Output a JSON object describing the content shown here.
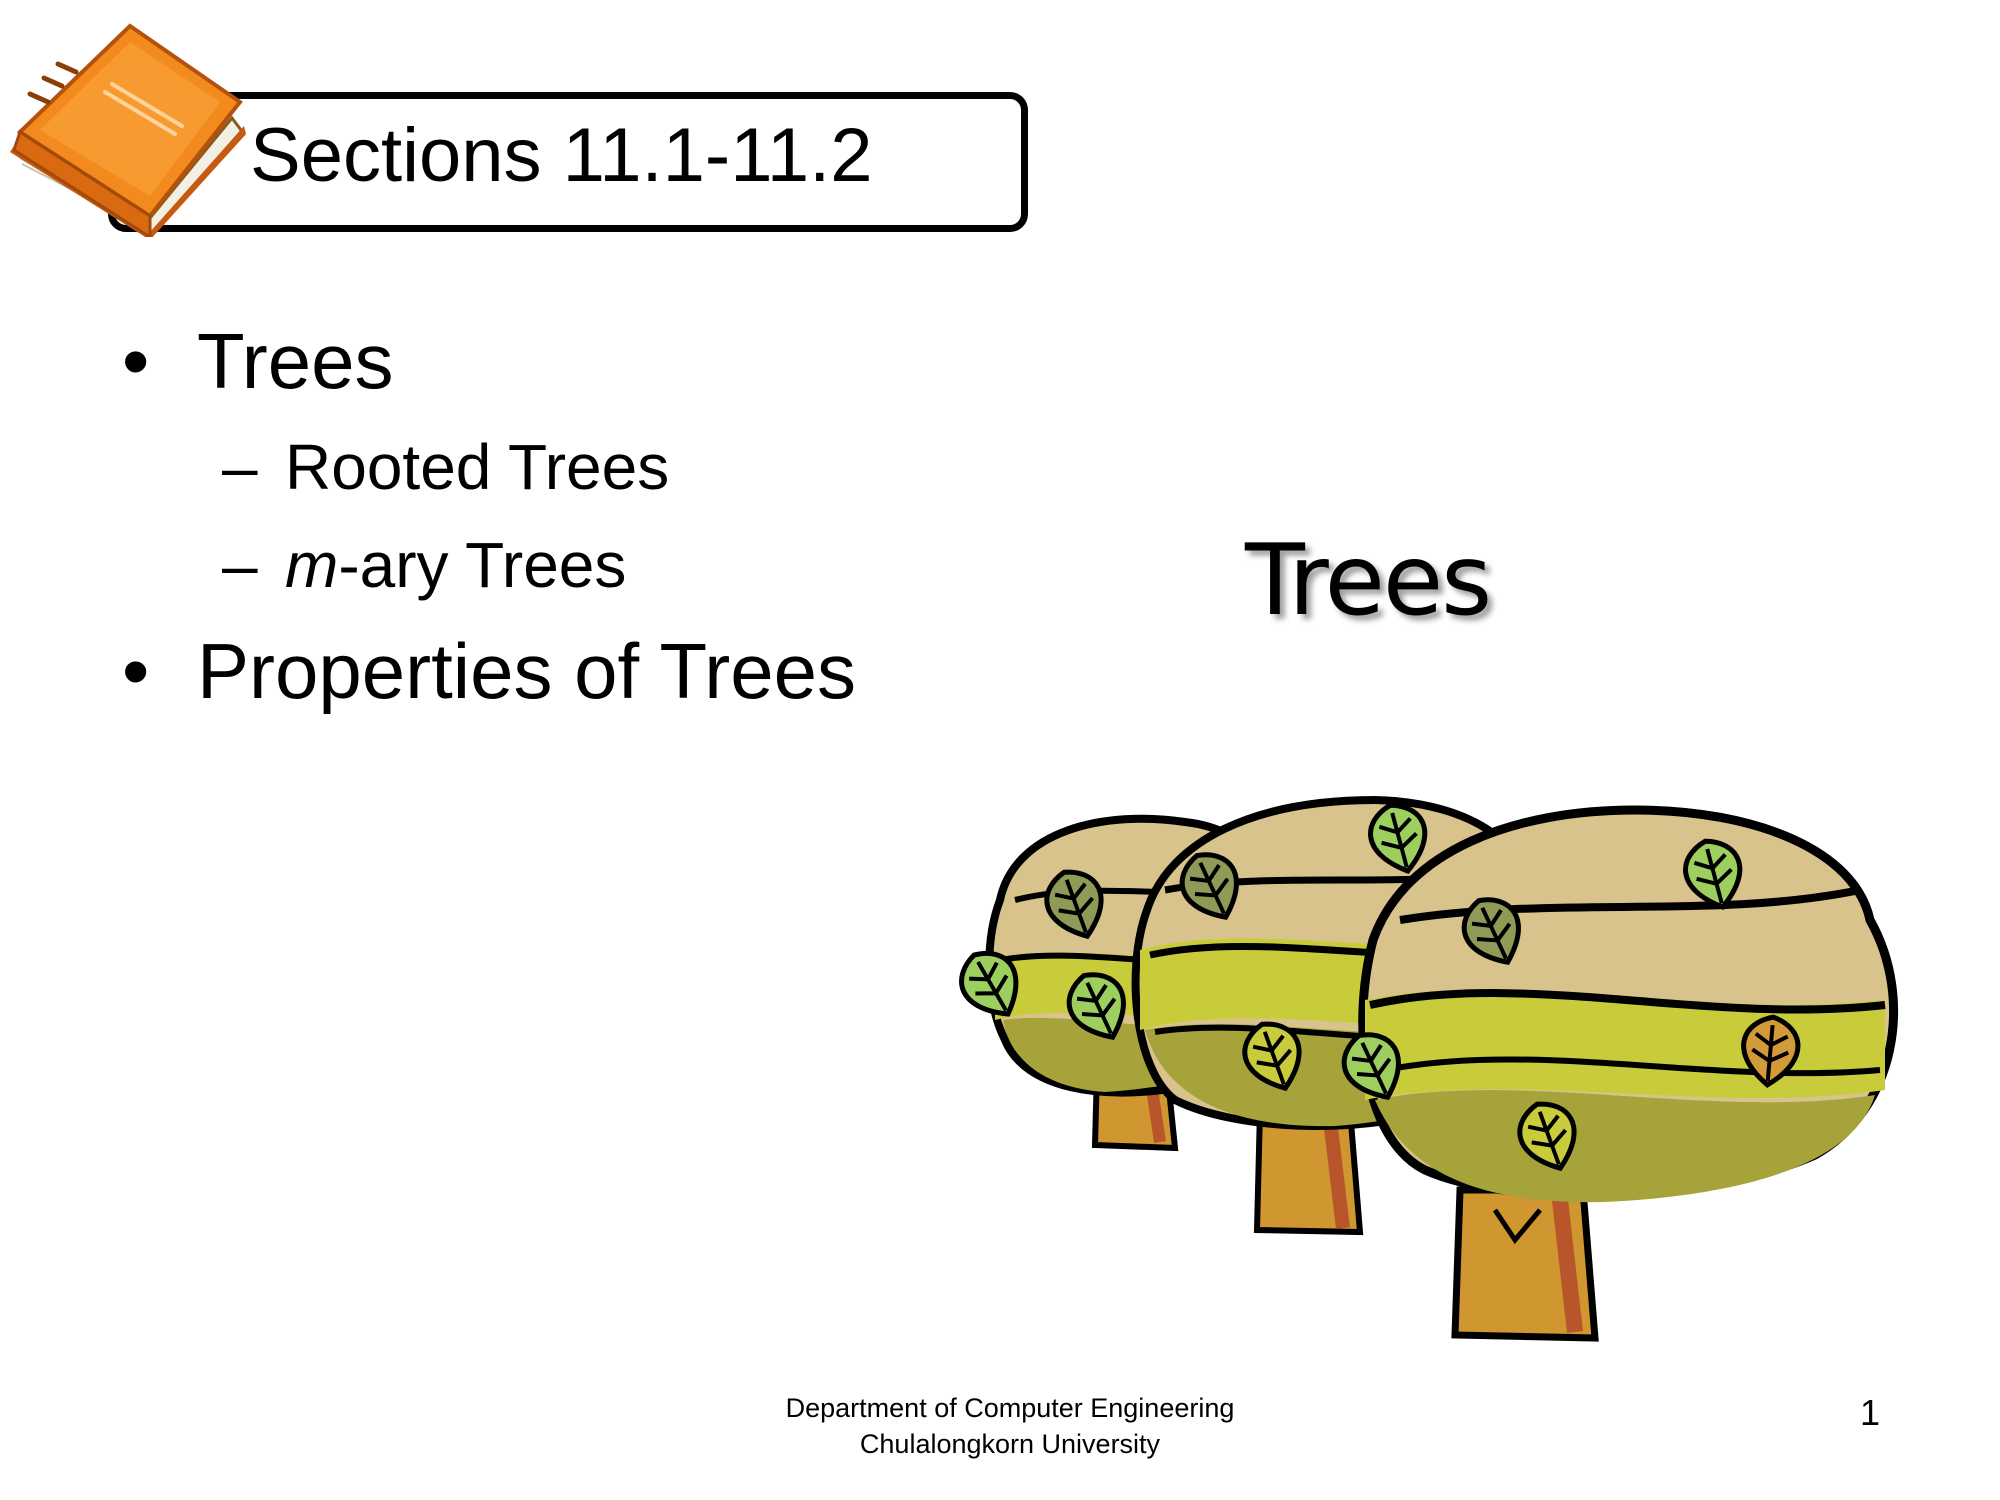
{
  "header": {
    "section_title": "Sections 11.1-11.2",
    "icon": "book-icon"
  },
  "outline": {
    "bullet_glyph": "•",
    "dash_glyph": "–",
    "item1": "Trees",
    "sub1": "Rooted Trees",
    "sub2_italic": "m",
    "sub2_rest": "-ary Trees",
    "item2": "Properties of Trees"
  },
  "slide_title": "Trees",
  "illustration": "trees-clipart",
  "footer": {
    "line1": "Department of Computer Engineering",
    "line2": "Chulalongkorn University",
    "page_number": "1"
  },
  "colors": {
    "book_orange": "#f28a1e",
    "book_page": "#f2efe3",
    "canopy_tan": "#d8c38c",
    "canopy_olive": "#b5b33c",
    "canopy_lime": "#c9cc3a",
    "trunk": "#d0962f",
    "leaf_green": "#9ccf5e"
  }
}
